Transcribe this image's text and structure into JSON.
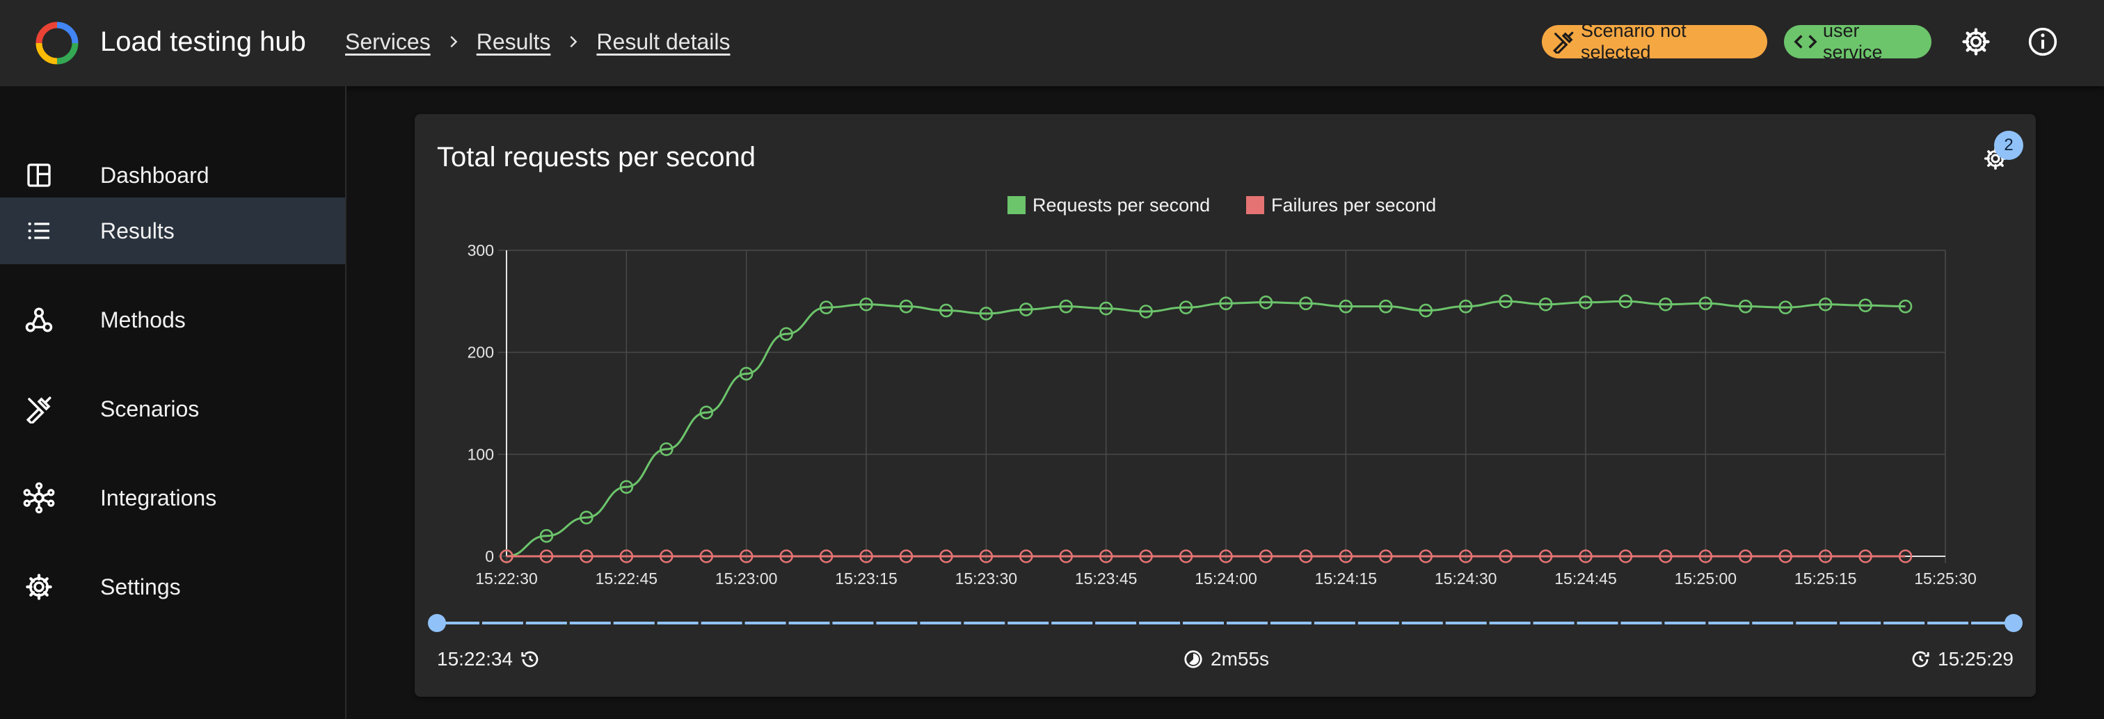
{
  "header": {
    "app_title": "Load testing hub",
    "breadcrumbs": [
      "Services",
      "Results",
      "Result details"
    ],
    "scenario_chip": "Scenario not selected",
    "service_chip": "user service",
    "icons": [
      "app-logo-icon",
      "tools-icon",
      "code-icon",
      "gear-icon",
      "info-icon"
    ]
  },
  "sidebar": {
    "items": [
      {
        "label": "Dashboard",
        "icon": "dashboard-icon"
      },
      {
        "label": "Results",
        "icon": "list-icon",
        "active": true
      },
      {
        "label": "Methods",
        "icon": "webhook-icon"
      },
      {
        "label": "Scenarios",
        "icon": "tools-icon"
      },
      {
        "label": "Integrations",
        "icon": "hub-icon"
      },
      {
        "label": "Settings",
        "icon": "gear-icon"
      }
    ]
  },
  "card": {
    "title": "Total requests per second",
    "settings_badge": "2",
    "range_start": "15:22:34",
    "duration": "2m55s",
    "range_end": "15:25:29",
    "range_selection": [
      0,
      1
    ]
  },
  "colors": {
    "requests": "#6cc46b",
    "failures": "#e57373",
    "accent": "#90c2f9",
    "scenario_chip": "#f5a742",
    "service_chip": "#6cc46b"
  },
  "chart_data": {
    "type": "line",
    "title": "",
    "xlabel": "",
    "ylabel": "",
    "ylim": [
      0,
      300
    ],
    "yticks": [
      "0",
      "100",
      "200",
      "300"
    ],
    "xticks": [
      "15:22:30",
      "15:22:45",
      "15:23:00",
      "15:23:15",
      "15:23:30",
      "15:23:45",
      "15:24:00",
      "15:24:15",
      "15:24:30",
      "15:24:45",
      "15:25:00",
      "15:25:15",
      "15:25:30"
    ],
    "legend_position": "top-center",
    "grid": true,
    "x_start": "15:22:30",
    "x_step_seconds": 5,
    "series": [
      {
        "name": "Requests per second",
        "values": [
          0,
          20,
          38,
          68,
          105,
          141,
          179,
          218,
          244,
          247,
          245,
          241,
          238,
          242,
          245,
          243,
          240,
          244,
          248,
          249,
          248,
          245,
          245,
          241,
          245,
          250,
          247,
          249,
          250,
          247,
          248,
          245,
          244,
          247,
          246,
          245
        ]
      },
      {
        "name": "Failures per second",
        "values": [
          0,
          0,
          0,
          0,
          0,
          0,
          0,
          0,
          0,
          0,
          0,
          0,
          0,
          0,
          0,
          0,
          0,
          0,
          0,
          0,
          0,
          0,
          0,
          0,
          0,
          0,
          0,
          0,
          0,
          0,
          0,
          0,
          0,
          0,
          0,
          0
        ]
      }
    ]
  }
}
